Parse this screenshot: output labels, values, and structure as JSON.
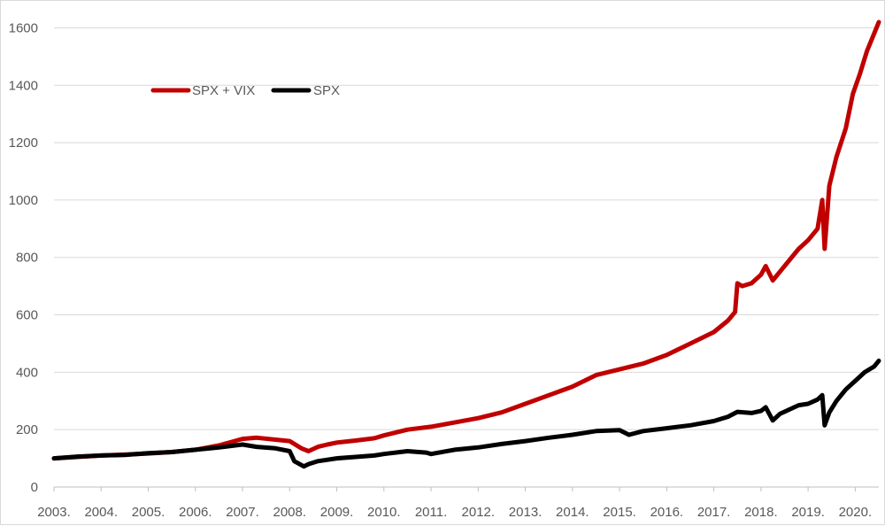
{
  "chart_data": {
    "type": "line",
    "title": "",
    "xlabel": "",
    "ylabel": "",
    "ylim": [
      0,
      1620
    ],
    "xlim": [
      2003.0,
      2020.5
    ],
    "y_ticks": [
      0,
      200,
      400,
      600,
      800,
      1000,
      1200,
      1400,
      1600
    ],
    "x_tick_labels": [
      "2003.",
      "2004.",
      "2005.",
      "2006.",
      "2007.",
      "2008.",
      "2009.",
      "2010.",
      "2011.",
      "2012.",
      "2013.",
      "2014.",
      "2015.",
      "2016.",
      "2017.",
      "2018.",
      "2019.",
      "2020."
    ],
    "grid": "horizontal",
    "legend_position": "top-left",
    "series": [
      {
        "name": "SPX + VIX",
        "color": "#c00000",
        "points": [
          [
            2003.0,
            100
          ],
          [
            2003.5,
            105
          ],
          [
            2004.0,
            110
          ],
          [
            2004.5,
            113
          ],
          [
            2005.0,
            117
          ],
          [
            2005.5,
            122
          ],
          [
            2006.0,
            130
          ],
          [
            2006.5,
            145
          ],
          [
            2007.0,
            168
          ],
          [
            2007.3,
            172
          ],
          [
            2007.7,
            165
          ],
          [
            2008.0,
            160
          ],
          [
            2008.25,
            135
          ],
          [
            2008.4,
            125
          ],
          [
            2008.6,
            140
          ],
          [
            2008.8,
            148
          ],
          [
            2009.0,
            155
          ],
          [
            2009.4,
            162
          ],
          [
            2009.8,
            170
          ],
          [
            2010.0,
            180
          ],
          [
            2010.5,
            200
          ],
          [
            2011.0,
            210
          ],
          [
            2011.5,
            225
          ],
          [
            2012.0,
            240
          ],
          [
            2012.5,
            260
          ],
          [
            2013.0,
            290
          ],
          [
            2013.5,
            320
          ],
          [
            2014.0,
            350
          ],
          [
            2014.5,
            390
          ],
          [
            2015.0,
            410
          ],
          [
            2015.5,
            430
          ],
          [
            2016.0,
            460
          ],
          [
            2016.5,
            500
          ],
          [
            2017.0,
            540
          ],
          [
            2017.3,
            580
          ],
          [
            2017.45,
            610
          ],
          [
            2017.5,
            710
          ],
          [
            2017.6,
            700
          ],
          [
            2017.8,
            710
          ],
          [
            2018.0,
            740
          ],
          [
            2018.1,
            770
          ],
          [
            2018.25,
            720
          ],
          [
            2018.4,
            750
          ],
          [
            2018.6,
            790
          ],
          [
            2018.8,
            830
          ],
          [
            2019.0,
            860
          ],
          [
            2019.2,
            900
          ],
          [
            2019.3,
            1000
          ],
          [
            2019.35,
            830
          ],
          [
            2019.45,
            1050
          ],
          [
            2019.6,
            1150
          ],
          [
            2019.8,
            1250
          ],
          [
            2019.95,
            1370
          ],
          [
            2020.1,
            1440
          ],
          [
            2020.25,
            1520
          ],
          [
            2020.4,
            1580
          ],
          [
            2020.5,
            1620
          ]
        ]
      },
      {
        "name": "SPX",
        "color": "#000000",
        "points": [
          [
            2003.0,
            100
          ],
          [
            2003.5,
            106
          ],
          [
            2004.0,
            110
          ],
          [
            2004.5,
            112
          ],
          [
            2005.0,
            118
          ],
          [
            2005.5,
            122
          ],
          [
            2006.0,
            130
          ],
          [
            2006.5,
            138
          ],
          [
            2007.0,
            148
          ],
          [
            2007.3,
            140
          ],
          [
            2007.7,
            135
          ],
          [
            2008.0,
            125
          ],
          [
            2008.1,
            90
          ],
          [
            2008.3,
            72
          ],
          [
            2008.4,
            80
          ],
          [
            2008.6,
            90
          ],
          [
            2009.0,
            100
          ],
          [
            2009.4,
            105
          ],
          [
            2009.8,
            110
          ],
          [
            2010.0,
            115
          ],
          [
            2010.5,
            125
          ],
          [
            2010.9,
            120
          ],
          [
            2011.0,
            115
          ],
          [
            2011.5,
            130
          ],
          [
            2012.0,
            138
          ],
          [
            2012.5,
            150
          ],
          [
            2013.0,
            160
          ],
          [
            2013.5,
            172
          ],
          [
            2014.0,
            182
          ],
          [
            2014.5,
            195
          ],
          [
            2015.0,
            198
          ],
          [
            2015.2,
            182
          ],
          [
            2015.5,
            195
          ],
          [
            2016.0,
            205
          ],
          [
            2016.5,
            215
          ],
          [
            2017.0,
            230
          ],
          [
            2017.3,
            245
          ],
          [
            2017.5,
            262
          ],
          [
            2017.8,
            258
          ],
          [
            2018.0,
            265
          ],
          [
            2018.1,
            278
          ],
          [
            2018.25,
            232
          ],
          [
            2018.4,
            255
          ],
          [
            2018.6,
            270
          ],
          [
            2018.8,
            285
          ],
          [
            2019.0,
            290
          ],
          [
            2019.2,
            305
          ],
          [
            2019.3,
            320
          ],
          [
            2019.35,
            215
          ],
          [
            2019.45,
            260
          ],
          [
            2019.6,
            300
          ],
          [
            2019.8,
            340
          ],
          [
            2020.0,
            370
          ],
          [
            2020.2,
            400
          ],
          [
            2020.4,
            420
          ],
          [
            2020.5,
            440
          ]
        ]
      }
    ]
  }
}
